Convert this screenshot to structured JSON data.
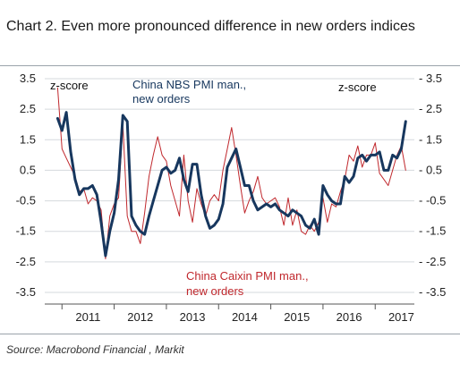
{
  "chart_data": {
    "type": "line",
    "title": "Chart 2. Even more pronounced difference in new orders indices",
    "source": "Source: Macrobond Financial , Markit",
    "y_unit_left": "z-score",
    "y_unit_right": "z-score",
    "ylim": [
      -3.5,
      3.5
    ],
    "yticks": [
      3.5,
      2.5,
      1.5,
      0.5,
      -0.5,
      -1.5,
      -2.5,
      -3.5
    ],
    "ytick_labels_left": [
      "3.5",
      "2.5",
      "1.5",
      "0.5",
      "-0.5",
      "-1.5",
      "-2.5",
      "-3.5"
    ],
    "ytick_labels_right": [
      "- 3.5",
      "- 2.5",
      "- 1.5",
      "- 0.5",
      "- -0.5",
      "- -1.5",
      "- -2.5",
      "- -3.5"
    ],
    "xlim": [
      2010.67,
      2017.75
    ],
    "x_year_labels": [
      "2011",
      "2012",
      "2013",
      "2014",
      "2015",
      "2016",
      "2017"
    ],
    "grid": true,
    "colors": {
      "nbs": "#17375e",
      "caixin": "#c0282d",
      "grid": "#d5d9dd",
      "axis": "#555555"
    },
    "series": [
      {
        "name": "China NBS PMI man., new orders",
        "values": [
          2.2,
          1.8,
          2.4,
          1.1,
          0.2,
          -0.3,
          -0.1,
          -0.1,
          0.0,
          -0.3,
          -1.2,
          -2.3,
          -1.5,
          -0.9,
          0.2,
          2.3,
          2.1,
          -1.0,
          -1.3,
          -1.5,
          -1.6,
          -1.0,
          -0.5,
          0.0,
          0.5,
          0.6,
          0.4,
          0.5,
          0.9,
          0.2,
          -0.2,
          0.7,
          0.7,
          -0.3,
          -1.0,
          -1.4,
          -1.3,
          -1.1,
          -0.6,
          0.6,
          0.9,
          1.2,
          0.6,
          0.0,
          0.0,
          -0.5,
          -0.8,
          -0.7,
          -0.6,
          -0.7,
          -0.6,
          -0.8,
          -0.9,
          -1.0,
          -0.8,
          -0.9,
          -1.0,
          -1.3,
          -1.4,
          -1.1,
          -1.6,
          0.0,
          -0.3,
          -0.5,
          -0.6,
          -0.6,
          0.3,
          0.1,
          0.3,
          0.9,
          1.0,
          0.8,
          1.0,
          1.0,
          1.1,
          0.5,
          0.5,
          1.0,
          0.9,
          1.2,
          2.1
        ]
      },
      {
        "name": "China Caixin PMI man., new orders",
        "values": [
          3.2,
          1.2,
          0.9,
          0.6,
          0.3,
          -0.2,
          -0.1,
          -0.6,
          -0.4,
          -0.5,
          -0.8,
          -2.4,
          -1.0,
          -0.6,
          -0.4,
          2.0,
          -1.0,
          -1.5,
          -1.5,
          -1.9,
          -0.9,
          0.3,
          1.0,
          1.6,
          1.0,
          0.8,
          0.0,
          -0.5,
          -1.0,
          1.0,
          -0.5,
          -1.2,
          -0.1,
          -0.6,
          -1.0,
          -0.5,
          -0.3,
          -0.5,
          0.5,
          1.2,
          1.9,
          1.0,
          0.0,
          -0.9,
          -0.5,
          -0.2,
          0.3,
          -0.4,
          -0.6,
          -0.5,
          -0.4,
          -0.7,
          -1.3,
          -0.4,
          -1.3,
          -0.8,
          -1.5,
          -1.6,
          -1.3,
          -1.5,
          -1.2,
          -0.4,
          -1.2,
          -0.6,
          -0.7,
          -0.2,
          0.2,
          1.0,
          0.8,
          1.3,
          0.6,
          1.0,
          1.0,
          1.4,
          0.4,
          0.2,
          0.0,
          0.5,
          1.0,
          1.3,
          0.5
        ]
      }
    ],
    "x_start": 2010.917,
    "x_step": 0.08333
  }
}
